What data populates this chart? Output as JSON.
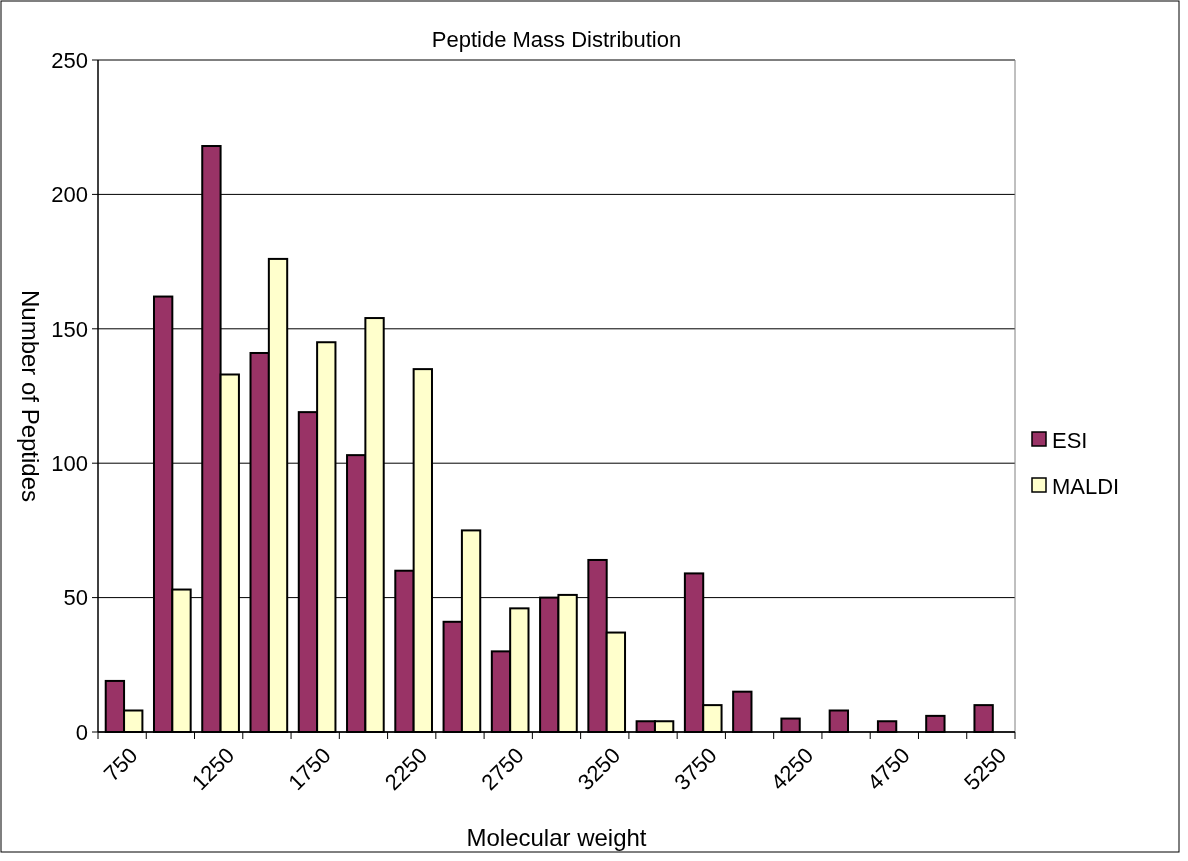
{
  "chart_data": {
    "type": "bar",
    "title": "Peptide Mass Distribution",
    "xlabel": "Molecular weight",
    "ylabel": "Number of Peptides",
    "categories": [
      "750",
      null,
      "1250",
      null,
      "1750",
      null,
      "2250",
      null,
      "2750",
      null,
      "3250",
      null,
      "3750",
      null,
      "4250",
      null,
      "4750",
      null,
      "5250"
    ],
    "series": [
      {
        "name": "ESI",
        "color": "#993366",
        "values": [
          19,
          162,
          218,
          141,
          119,
          103,
          60,
          41,
          30,
          50,
          64,
          4,
          59,
          15,
          5,
          8,
          4,
          6,
          10
        ]
      },
      {
        "name": "MALDI",
        "color": "#ffffcc",
        "values": [
          8,
          53,
          133,
          176,
          145,
          154,
          135,
          75,
          46,
          51,
          37,
          4,
          10,
          null,
          null,
          null,
          null,
          null,
          null
        ]
      }
    ],
    "ylim": [
      0,
      250
    ],
    "yticks": [
      0,
      50,
      100,
      150,
      200,
      250
    ],
    "grid": "y",
    "legend": "right"
  }
}
